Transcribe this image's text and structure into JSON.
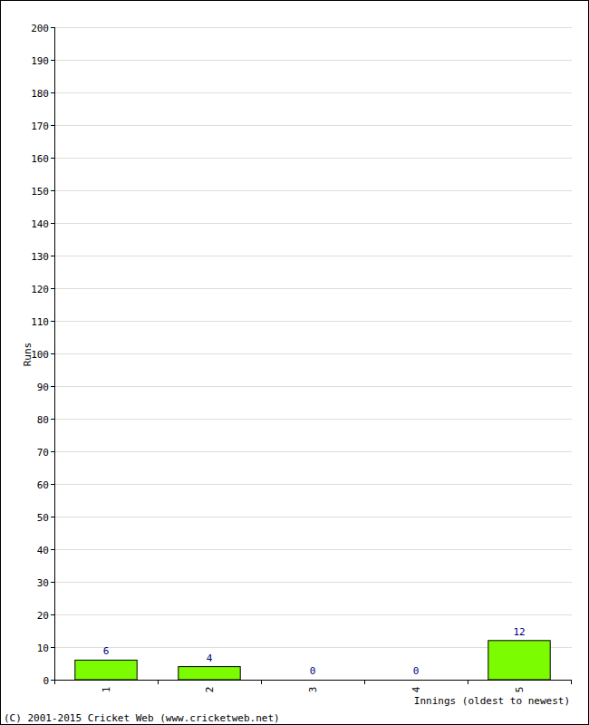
{
  "chart_data": {
    "type": "bar",
    "categories": [
      "1",
      "2",
      "3",
      "4",
      "5"
    ],
    "values": [
      6,
      4,
      0,
      0,
      12
    ],
    "color": "#7cfc00",
    "ylim": [
      0,
      200
    ],
    "yticks": [
      0,
      10,
      20,
      30,
      40,
      50,
      60,
      70,
      80,
      90,
      100,
      110,
      120,
      130,
      140,
      150,
      160,
      170,
      180,
      190,
      200
    ],
    "grid": true,
    "data_labels": true,
    "x_label": "Innings (oldest to newest)",
    "y_label": "Runs",
    "source": "(C) 2001-2015 Cricket Web (www.cricketweb.net)"
  }
}
